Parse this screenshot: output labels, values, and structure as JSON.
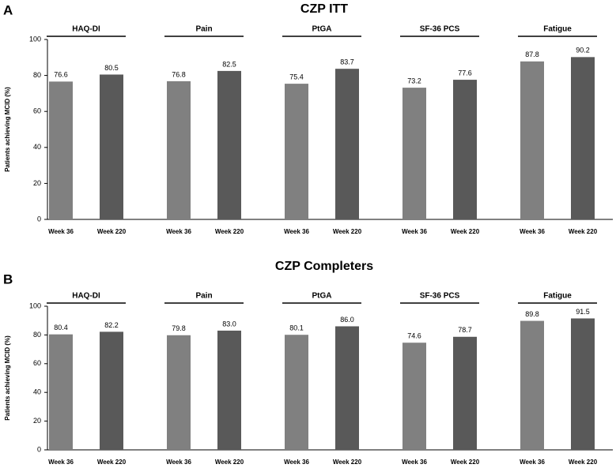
{
  "chart_data": [
    {
      "type": "bar",
      "panel": "A",
      "title": "CZP ITT",
      "y_label": "Patients achieving MCID (%)",
      "categories": [
        "HAQ-DI",
        "Pain",
        "PtGA",
        "SF-36 PCS",
        "Fatigue"
      ],
      "series": [
        {
          "name": "Week 36",
          "color": "#808080",
          "values": [
            76.6,
            76.8,
            75.4,
            73.2,
            87.8
          ],
          "value_labels": [
            "76.6",
            "76.8",
            "75.4",
            "73.2",
            "87.8"
          ]
        },
        {
          "name": "Week 220",
          "color": "#595959",
          "values": [
            80.5,
            82.5,
            83.7,
            77.6,
            90.2
          ],
          "value_labels": [
            "80.5",
            "82.5",
            "83.7",
            "77.6",
            "90.2"
          ]
        }
      ],
      "ylim": [
        0,
        100
      ],
      "yticks": [
        0,
        20,
        40,
        60,
        80,
        100
      ]
    },
    {
      "type": "bar",
      "panel": "B",
      "title": "CZP Completers",
      "y_label": "Patients achieving MCID (%)",
      "categories": [
        "HAQ-DI",
        "Pain",
        "PtGA",
        "SF-36 PCS",
        "Fatigue"
      ],
      "series": [
        {
          "name": "Week 36",
          "color": "#808080",
          "values": [
            80.4,
            79.8,
            80.1,
            74.6,
            89.8
          ],
          "value_labels": [
            "80.4",
            "79.8",
            "80.1",
            "74.6",
            "89.8"
          ]
        },
        {
          "name": "Week 220",
          "color": "#595959",
          "values": [
            82.2,
            83.0,
            86.0,
            78.7,
            91.5
          ],
          "value_labels": [
            "82.2",
            "83.0",
            "86.0",
            "78.7",
            "91.5"
          ]
        }
      ],
      "ylim": [
        0,
        100
      ],
      "yticks": [
        0,
        20,
        40,
        60,
        80,
        100
      ]
    }
  ]
}
